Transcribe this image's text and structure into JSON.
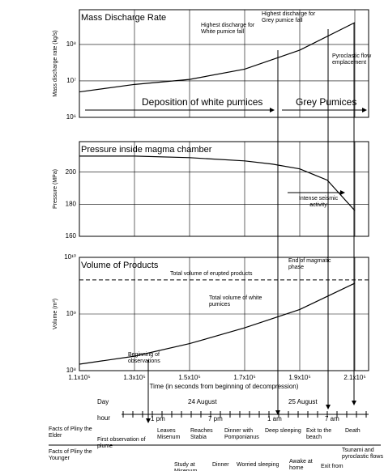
{
  "chart_data": [
    {
      "type": "line",
      "title": "Mass Discharge Rate",
      "ylabel": "Mass discharge rate (kg/s)",
      "log": true,
      "color": "#000000",
      "x": [
        110000,
        130000,
        150000,
        170000,
        190000,
        210000
      ],
      "values": [
        5000000,
        8000000,
        11000000,
        21000000,
        70000000,
        400000000
      ],
      "xlim": [
        110000,
        215000
      ],
      "ylim": [
        1000000,
        900000000
      ],
      "yticks": [
        {
          "value": 1000000,
          "label": "10⁶"
        },
        {
          "value": 10000000,
          "label": "10⁷"
        },
        {
          "value": 100000000,
          "label": "10⁸"
        }
      ],
      "annotations": [
        "Highest discharge for White pumice fall",
        "Highest discharge for Grey pumice fall",
        "Pyroclastic flow emplacement",
        "Deposition of white pumices",
        "Grey Pumices"
      ]
    },
    {
      "type": "line",
      "title": "Pressure inside magma chamber",
      "ylabel": "Pressure (MPa)",
      "log": false,
      "color": "#000000",
      "x": [
        110000,
        130000,
        150000,
        170000,
        180000,
        190000,
        200000,
        210000
      ],
      "values": [
        210,
        210,
        209,
        207,
        205,
        202,
        195,
        176
      ],
      "xlim": [
        110000,
        215000
      ],
      "ylim": [
        160,
        219
      ],
      "yticks": [
        160,
        180,
        200
      ],
      "annotations": [
        "Intense seismic activity"
      ]
    },
    {
      "type": "line",
      "title": "Volume of Products",
      "ylabel": "Volume (m³)",
      "log": true,
      "color": "#000000",
      "x": [
        110000,
        130000,
        150000,
        170000,
        190000,
        210000
      ],
      "values": [
        130000000,
        180000000,
        300000000,
        570000000,
        1200000000,
        3500000000
      ],
      "reference_line": 4000000000,
      "xlim": [
        110000,
        215000
      ],
      "ylim": [
        100000000,
        10000000000
      ],
      "yticks": [
        {
          "value": 100000000,
          "label": "10⁸"
        },
        {
          "value": 1000000000,
          "label": "10⁹"
        },
        {
          "value": 10000000000,
          "label": "10¹⁰"
        }
      ],
      "xticks": [
        {
          "value": 110000,
          "label": "1.1x10⁵"
        },
        {
          "value": 130000,
          "label": "1.3x10⁵"
        },
        {
          "value": 150000,
          "label": "1.5x10⁵"
        },
        {
          "value": 170000,
          "label": "1.7x10⁵"
        },
        {
          "value": 190000,
          "label": "1.9x10⁵"
        },
        {
          "value": 210000,
          "label": "2.1x10⁵"
        }
      ],
      "xlabel": "Time (in seconds from beginning of decompression)",
      "annotations": [
        "Total volume of erupted products",
        "Total volume of white pumices",
        "Beginning of observations",
        "End of magmatic phase"
      ]
    }
  ],
  "timeline": {
    "day_label": "Day",
    "days": [
      "24 August",
      "25 August"
    ],
    "hour_label": "hour",
    "hours": [
      "1 pm",
      "7 pm",
      "1 am",
      "7 am"
    ],
    "elder_label": "Facts of Pliny the Elder",
    "elder_events": [
      "Leaves Misenum",
      "Reaches Stabia",
      "Dinner with Pomponianus",
      "Deep sleeping",
      "Exit to the beach",
      "Death"
    ],
    "younger_label": "Facts of Pliny the Younger",
    "younger_events": [
      "First observation of plume",
      "Study at Misenum",
      "Dinner",
      "Worried sleeping",
      "Awake at home",
      "Exit from",
      "Tsunami and pyroclastic flows"
    ]
  }
}
